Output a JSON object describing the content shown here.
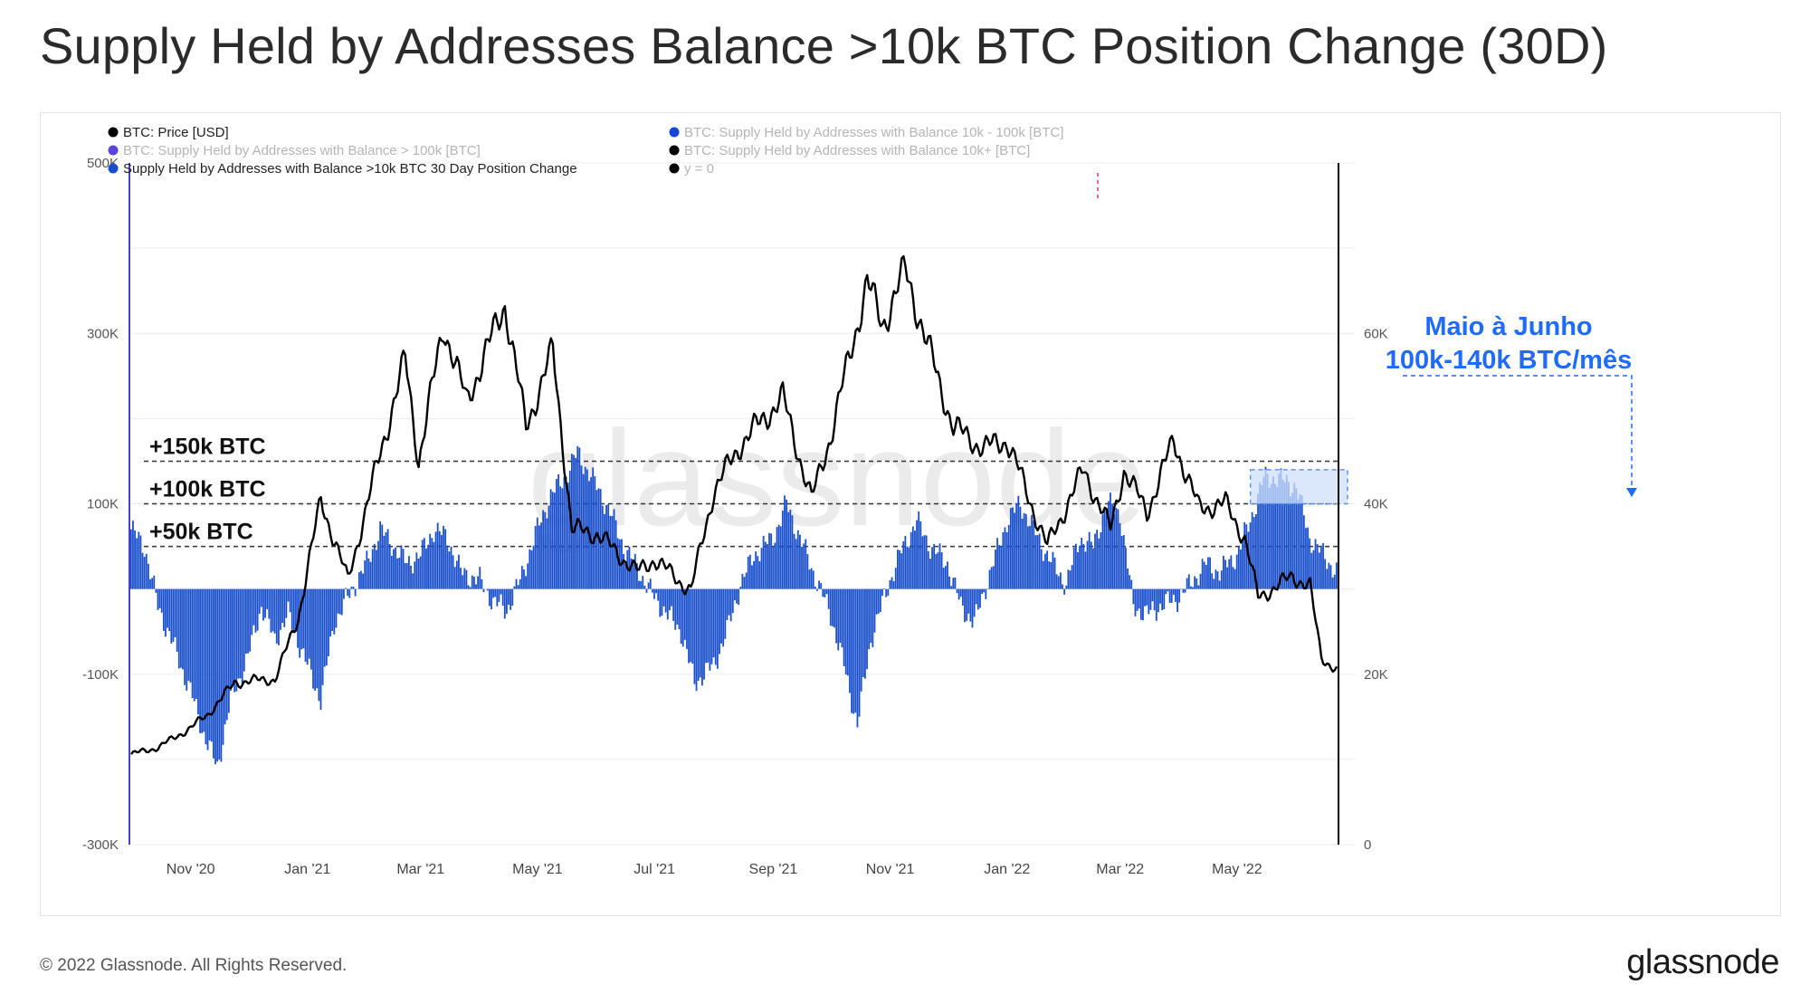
{
  "title": "Supply Held by Addresses Balance >10k BTC Position Change (30D)",
  "footer": "© 2022 Glassnode. All Rights Reserved.",
  "brand": "glassnode",
  "watermark": "glassnode",
  "colors": {
    "bars": "#1a4fcc",
    "price": "#000000",
    "legend_blue": "#1746d6",
    "legend_purple": "#5b45d8",
    "annotation": "#1f6bff",
    "highlight_fill": "#cfe0fb"
  },
  "legend": [
    {
      "label": "BTC: Price [USD]",
      "dot": "#000000",
      "faded": false
    },
    {
      "label": "BTC: Supply Held by Addresses with Balance 10k - 100k [BTC]",
      "dot": "#1746d6",
      "faded": true
    },
    {
      "label": "BTC: Supply Held by Addresses with Balance > 100k [BTC]",
      "dot": "#5b45d8",
      "faded": true
    },
    {
      "label": "BTC: Supply Held by Addresses with Balance 10k+ [BTC]",
      "dot": "#000000",
      "faded": true
    },
    {
      "label": "Supply Held by Addresses with Balance >10k BTC 30 Day Position Change",
      "dot": "#1a4fcc",
      "faded": false
    },
    {
      "label": "y = 0",
      "dot": "#000000",
      "faded": true
    }
  ],
  "annotation": {
    "line1": "Maio à Junho",
    "line2": "100k-140k BTC/mês"
  },
  "chart_data": {
    "type": "bar",
    "x_ticks": [
      "Nov '20",
      "Jan '21",
      "Mar '21",
      "May '21",
      "Jul '21",
      "Sep '21",
      "Nov '21",
      "Jan '22",
      "Mar '22",
      "May '22"
    ],
    "y_left": {
      "ticks": [
        "500K",
        "300K",
        "100K",
        "-100K",
        "-300K"
      ],
      "range": [
        -300000,
        500000
      ]
    },
    "y_right": {
      "ticks": [
        "60K",
        "40K",
        "20K",
        "0"
      ],
      "range": [
        0,
        80000
      ]
    },
    "reference_lines": [
      {
        "label": "+150k BTC",
        "value": 150000
      },
      {
        "label": "+100k BTC",
        "value": 100000
      },
      {
        "label": "+50k BTC",
        "value": 50000
      }
    ],
    "series": [
      {
        "name": "Supply Held by Addresses with Balance >10k BTC 30 Day Position Change",
        "axis": "left",
        "anchors": [
          [
            "2020-10-01",
            70000
          ],
          [
            "2020-10-08",
            50000
          ],
          [
            "2020-10-15",
            -20000
          ],
          [
            "2020-10-22",
            -60000
          ],
          [
            "2020-11-01",
            -120000
          ],
          [
            "2020-11-08",
            -170000
          ],
          [
            "2020-11-15",
            -210000
          ],
          [
            "2020-11-22",
            -130000
          ],
          [
            "2020-12-01",
            -80000
          ],
          [
            "2020-12-08",
            -20000
          ],
          [
            "2020-12-15",
            -60000
          ],
          [
            "2020-12-22",
            -30000
          ],
          [
            "2021-01-01",
            -90000
          ],
          [
            "2021-01-08",
            -130000
          ],
          [
            "2021-01-15",
            -40000
          ],
          [
            "2021-01-22",
            -10000
          ],
          [
            "2021-02-01",
            30000
          ],
          [
            "2021-02-08",
            70000
          ],
          [
            "2021-02-15",
            50000
          ],
          [
            "2021-02-22",
            30000
          ],
          [
            "2021-03-01",
            40000
          ],
          [
            "2021-03-08",
            70000
          ],
          [
            "2021-03-15",
            60000
          ],
          [
            "2021-03-22",
            20000
          ],
          [
            "2021-04-01",
            10000
          ],
          [
            "2021-04-08",
            -15000
          ],
          [
            "2021-04-15",
            -25000
          ],
          [
            "2021-04-22",
            10000
          ],
          [
            "2021-05-01",
            70000
          ],
          [
            "2021-05-08",
            110000
          ],
          [
            "2021-05-15",
            130000
          ],
          [
            "2021-05-22",
            160000
          ],
          [
            "2021-06-01",
            120000
          ],
          [
            "2021-06-08",
            90000
          ],
          [
            "2021-06-15",
            50000
          ],
          [
            "2021-06-22",
            25000
          ],
          [
            "2021-07-01",
            -10000
          ],
          [
            "2021-07-08",
            -30000
          ],
          [
            "2021-07-15",
            -50000
          ],
          [
            "2021-07-22",
            -110000
          ],
          [
            "2021-08-01",
            -90000
          ],
          [
            "2021-08-08",
            -50000
          ],
          [
            "2021-08-15",
            5000
          ],
          [
            "2021-08-22",
            40000
          ],
          [
            "2021-09-01",
            60000
          ],
          [
            "2021-09-08",
            100000
          ],
          [
            "2021-09-15",
            60000
          ],
          [
            "2021-09-22",
            20000
          ],
          [
            "2021-10-01",
            -30000
          ],
          [
            "2021-10-08",
            -90000
          ],
          [
            "2021-10-15",
            -160000
          ],
          [
            "2021-10-22",
            -60000
          ],
          [
            "2021-11-01",
            10000
          ],
          [
            "2021-11-08",
            50000
          ],
          [
            "2021-11-15",
            80000
          ],
          [
            "2021-11-22",
            50000
          ],
          [
            "2021-12-01",
            30000
          ],
          [
            "2021-12-08",
            -20000
          ],
          [
            "2021-12-15",
            -40000
          ],
          [
            "2021-12-22",
            10000
          ],
          [
            "2022-01-01",
            80000
          ],
          [
            "2022-01-08",
            100000
          ],
          [
            "2022-01-15",
            70000
          ],
          [
            "2022-01-22",
            40000
          ],
          [
            "2022-02-01",
            5000
          ],
          [
            "2022-02-08",
            60000
          ],
          [
            "2022-02-15",
            50000
          ],
          [
            "2022-02-22",
            100000
          ],
          [
            "2022-03-01",
            90000
          ],
          [
            "2022-03-08",
            -20000
          ],
          [
            "2022-03-15",
            -30000
          ],
          [
            "2022-03-22",
            -20000
          ],
          [
            "2022-04-01",
            -10000
          ],
          [
            "2022-04-08",
            10000
          ],
          [
            "2022-04-15",
            30000
          ],
          [
            "2022-04-22",
            20000
          ],
          [
            "2022-05-01",
            40000
          ],
          [
            "2022-05-08",
            80000
          ],
          [
            "2022-05-15",
            130000
          ],
          [
            "2022-05-22",
            130000
          ],
          [
            "2022-06-01",
            120000
          ],
          [
            "2022-06-08",
            60000
          ],
          [
            "2022-06-15",
            40000
          ],
          [
            "2022-06-22",
            20000
          ]
        ]
      },
      {
        "name": "BTC: Price [USD]",
        "axis": "right",
        "anchors": [
          [
            "2020-10-01",
            10600
          ],
          [
            "2020-10-15",
            11400
          ],
          [
            "2020-11-01",
            13700
          ],
          [
            "2020-11-10",
            15300
          ],
          [
            "2020-11-24",
            19000
          ],
          [
            "2020-12-01",
            19200
          ],
          [
            "2020-12-15",
            19400
          ],
          [
            "2020-12-27",
            26500
          ],
          [
            "2021-01-08",
            40500
          ],
          [
            "2021-01-22",
            31000
          ],
          [
            "2021-02-08",
            46000
          ],
          [
            "2021-02-21",
            57000
          ],
          [
            "2021-02-28",
            45000
          ],
          [
            "2021-03-13",
            61000
          ],
          [
            "2021-03-25",
            52000
          ],
          [
            "2021-04-14",
            63500
          ],
          [
            "2021-04-25",
            49000
          ],
          [
            "2021-05-09",
            58000
          ],
          [
            "2021-05-19",
            37000
          ],
          [
            "2021-06-01",
            36500
          ],
          [
            "2021-06-22",
            32000
          ],
          [
            "2021-07-01",
            33500
          ],
          [
            "2021-07-20",
            29800
          ],
          [
            "2021-08-01",
            41500
          ],
          [
            "2021-08-15",
            47000
          ],
          [
            "2021-09-06",
            52500
          ],
          [
            "2021-09-21",
            40500
          ],
          [
            "2021-10-01",
            48000
          ],
          [
            "2021-10-20",
            66000
          ],
          [
            "2021-10-28",
            61000
          ],
          [
            "2021-11-09",
            67500
          ],
          [
            "2021-11-20",
            59000
          ],
          [
            "2021-12-04",
            49000
          ],
          [
            "2021-12-20",
            46500
          ],
          [
            "2022-01-01",
            47500
          ],
          [
            "2022-01-22",
            35000
          ],
          [
            "2022-02-10",
            44000
          ],
          [
            "2022-02-24",
            37000
          ],
          [
            "2022-03-03",
            44000
          ],
          [
            "2022-03-15",
            39000
          ],
          [
            "2022-03-29",
            47500
          ],
          [
            "2022-04-11",
            39500
          ],
          [
            "2022-04-25",
            40000
          ],
          [
            "2022-05-05",
            36000
          ],
          [
            "2022-05-12",
            29000
          ],
          [
            "2022-05-30",
            31500
          ],
          [
            "2022-06-08",
            30300
          ],
          [
            "2022-06-14",
            22000
          ],
          [
            "2022-06-22",
            20500
          ]
        ]
      }
    ]
  }
}
